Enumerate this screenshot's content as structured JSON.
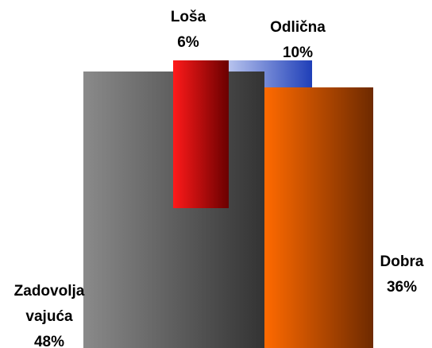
{
  "chart_data": {
    "type": "bar",
    "categories": [
      "Loša",
      "Odlična",
      "Dobra",
      "Zadovolja vajuća"
    ],
    "values": [
      6,
      10,
      36,
      48
    ],
    "value_labels": [
      "6%",
      "10%",
      "36%",
      "48%"
    ],
    "colors": [
      [
        "#ff1a1a",
        "#6a0000"
      ],
      [
        "#b8c4ee",
        "#1f3fb8"
      ],
      [
        "#ff6a00",
        "#6e2a00"
      ],
      [
        "#8a8a8a",
        "#333333"
      ]
    ]
  }
}
